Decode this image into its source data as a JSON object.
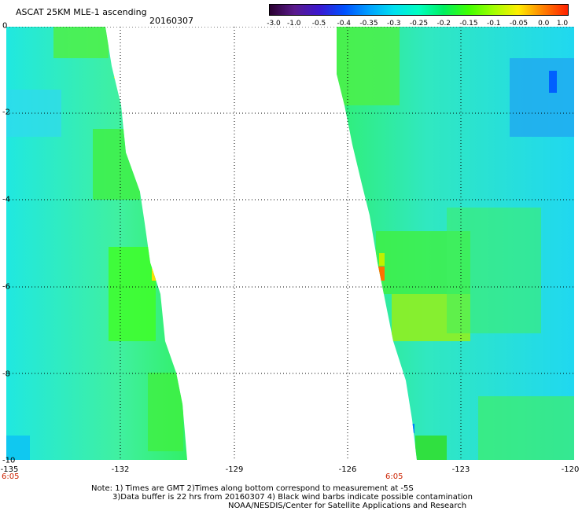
{
  "header": {
    "title": "ASCAT 25KM MLE-1 ascending",
    "date": "20160307"
  },
  "colorbar": {
    "labels": [
      "-3.0",
      "-1.0",
      "-0.5",
      "-0.4",
      "-0.35",
      "-0.3",
      "-0.25",
      "-0.2",
      "-0.15",
      "-0.1",
      "-0.05",
      "0.0",
      "1.0"
    ],
    "colors": [
      "#2a0030",
      "#5a1a8c",
      "#3a18d0",
      "#0050ff",
      "#00a0ff",
      "#00e0f0",
      "#00ffc0",
      "#00f060",
      "#40ff00",
      "#a0ff00",
      "#ffee00",
      "#ff8000",
      "#ff2000"
    ]
  },
  "axes": {
    "x_ticks": [
      "-135",
      "-132",
      "-129",
      "-126",
      "-123",
      "-120"
    ],
    "y_ticks": [
      "0",
      "-2",
      "-4",
      "-6",
      "-8",
      "-10"
    ]
  },
  "times": {
    "left": "6:05",
    "right": "6:05"
  },
  "notes": {
    "line1": "Note: 1) Times are GMT 2)Times along bottom correspond to measurement at -5S",
    "line2": "3)Data buffer is 22 hrs from 20160307 4) Black wind barbs indicate possible contamination",
    "line3": "NOAA/NESDIS/Center for Satellite Applications and Research"
  }
}
